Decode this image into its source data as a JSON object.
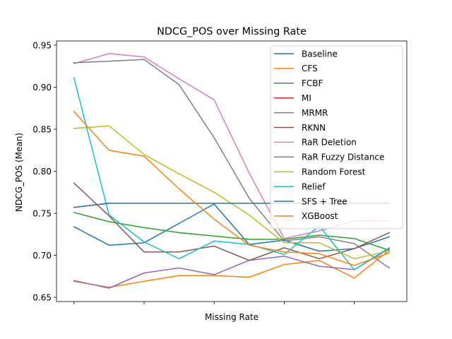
{
  "chart_data": {
    "type": "line",
    "title": "NDCG_POS over Missing Rate",
    "xlabel": "Missing Rate",
    "ylabel": "NDCG_POS (Mean)",
    "ylim": [
      0.645,
      0.955
    ],
    "xlim": [
      -0.05,
      0.95
    ],
    "x_ticks": [
      0,
      0.2,
      0.4,
      0.6,
      0.8
    ],
    "x_tick_labels": [
      "",
      "",
      "",
      "",
      ""
    ],
    "y_ticks": [
      0.65,
      0.7,
      0.75,
      0.8,
      0.85,
      0.9,
      0.95
    ],
    "y_tick_labels": [
      "0.65",
      "0.70",
      "0.75",
      "0.80",
      "0.85",
      "0.90",
      "0.95"
    ],
    "grid": false,
    "legend_position": "top-right",
    "x": [
      0,
      0.1,
      0.2,
      0.3,
      0.4,
      0.5,
      0.6,
      0.7,
      0.8,
      0.9
    ],
    "series": [
      {
        "name": "Baseline",
        "color": "#1f77b4",
        "values": [
          0.734,
          0.712,
          0.715,
          0.738,
          0.761,
          0.713,
          0.718,
          0.705,
          0.708,
          0.722
        ]
      },
      {
        "name": "CFS",
        "color": "#ff7f0e",
        "values": [
          0.669,
          0.662,
          0.669,
          0.676,
          0.676,
          0.674,
          0.689,
          0.694,
          0.673,
          0.706
        ]
      },
      {
        "name": "FCBF",
        "color": "#2ca02c",
        "values": [
          0.751,
          0.74,
          0.733,
          0.727,
          0.723,
          0.719,
          0.719,
          0.724,
          0.72,
          0.706
        ]
      },
      {
        "name": "MI",
        "color": "#d62728",
        "values": [
          0.757,
          0.762,
          0.762,
          0.762,
          0.762,
          0.762,
          0.762,
          0.762,
          0.762,
          0.762
        ]
      },
      {
        "name": "MRMR",
        "color": "#9467bd",
        "values": [
          0.67,
          0.661,
          0.679,
          0.685,
          0.677,
          0.694,
          0.699,
          0.687,
          0.683,
          0.708
        ]
      },
      {
        "name": "RKNN",
        "color": "#8c564b",
        "values": [
          0.786,
          0.747,
          0.704,
          0.704,
          0.711,
          0.694,
          0.709,
          0.696,
          0.708,
          0.727
        ]
      },
      {
        "name": "RaR Deletion",
        "color": "#e377c2",
        "values": [
          0.928,
          0.94,
          0.936,
          0.91,
          0.885,
          0.798,
          0.72,
          0.729,
          0.741,
          0.741
        ]
      },
      {
        "name": "RaR Fuzzy Distance",
        "color": "#7f7f7f",
        "values": [
          0.929,
          0.931,
          0.933,
          0.903,
          0.84,
          0.768,
          0.717,
          0.722,
          0.714,
          0.685
        ]
      },
      {
        "name": "Random Forest",
        "color": "#bcbd22",
        "values": [
          0.851,
          0.854,
          0.82,
          0.797,
          0.775,
          0.748,
          0.715,
          0.715,
          0.696,
          0.705
        ]
      },
      {
        "name": "Relief",
        "color": "#17becf",
        "values": [
          0.911,
          0.748,
          0.716,
          0.696,
          0.717,
          0.713,
          0.701,
          0.735,
          0.683,
          0.709
        ]
      },
      {
        "name": "SFS + Tree",
        "color": "#1f77b4",
        "values": [
          0.757,
          0.762,
          0.762,
          0.762,
          0.762,
          0.762,
          0.762,
          0.762,
          0.762,
          0.762
        ]
      },
      {
        "name": "XGBoost",
        "color": "#ff7f0e",
        "values": [
          0.871,
          0.825,
          0.818,
          0.779,
          0.743,
          0.712,
          0.704,
          0.702,
          0.688,
          0.703
        ]
      }
    ]
  }
}
